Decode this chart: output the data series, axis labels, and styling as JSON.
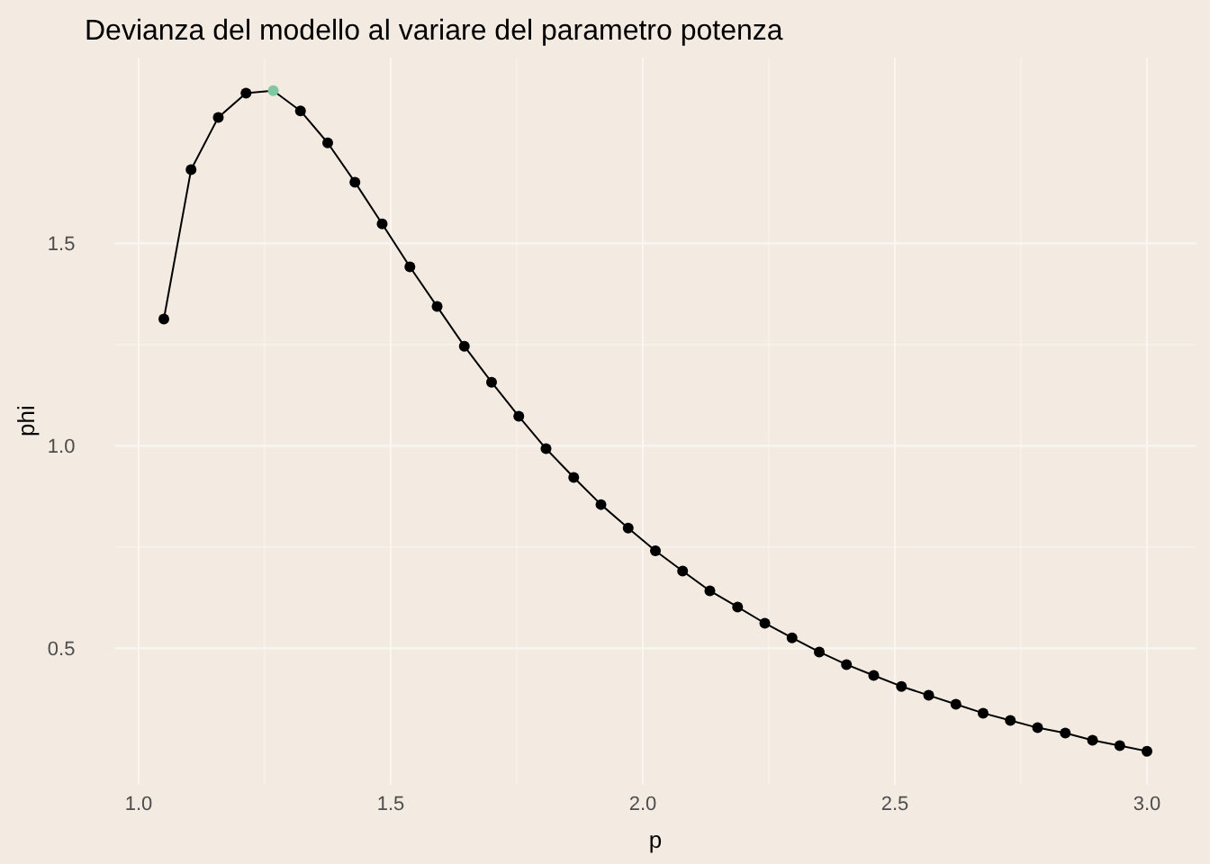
{
  "chart_data": {
    "type": "line",
    "title": "Devianza del modello al variare del parametro potenza",
    "xlabel": "p",
    "ylabel": "phi",
    "x": [
      1.05,
      1.104,
      1.158,
      1.213,
      1.267,
      1.321,
      1.375,
      1.429,
      1.483,
      1.538,
      1.592,
      1.646,
      1.7,
      1.754,
      1.808,
      1.863,
      1.917,
      1.971,
      2.025,
      2.079,
      2.133,
      2.188,
      2.242,
      2.296,
      2.35,
      2.404,
      2.458,
      2.513,
      2.567,
      2.621,
      2.675,
      2.729,
      2.783,
      2.838,
      2.892,
      2.946,
      3.0
    ],
    "series": [
      {
        "color": "#000000",
        "colors": [
          "#000000",
          "#000000",
          "#000000",
          "#000000",
          "#7fc8a0",
          "#000000",
          "#000000",
          "#000000",
          "#000000",
          "#000000",
          "#000000",
          "#000000",
          "#000000",
          "#000000",
          "#000000",
          "#000000",
          "#000000",
          "#000000",
          "#000000",
          "#000000",
          "#000000",
          "#000000",
          "#000000",
          "#000000",
          "#000000",
          "#000000",
          "#000000",
          "#000000",
          "#000000",
          "#000000",
          "#000000",
          "#000000",
          "#000000",
          "#000000",
          "#000000",
          "#000000",
          "#000000"
        ],
        "values": [
          1.313,
          1.682,
          1.811,
          1.871,
          1.877,
          1.827,
          1.748,
          1.651,
          1.548,
          1.442,
          1.344,
          1.246,
          1.157,
          1.073,
          0.993,
          0.922,
          0.855,
          0.797,
          0.741,
          0.691,
          0.642,
          0.602,
          0.562,
          0.526,
          0.491,
          0.46,
          0.433,
          0.406,
          0.384,
          0.362,
          0.34,
          0.322,
          0.304,
          0.291,
          0.273,
          0.26,
          0.246
        ]
      }
    ],
    "xlim": [
      0.9525,
      3.0975
    ],
    "xticks": [
      {
        "value": 1,
        "label": "1.0"
      },
      1.5,
      {
        "value": 2,
        "label": "2.0"
      },
      2.5,
      {
        "value": 3,
        "label": "3.0"
      }
    ],
    "ylim": [
      0.164,
      1.959
    ],
    "yticks": [
      0.5,
      {
        "value": 1,
        "label": "1.0"
      },
      1.5
    ],
    "grid": true,
    "marker": "circle",
    "line_style": "solid"
  }
}
